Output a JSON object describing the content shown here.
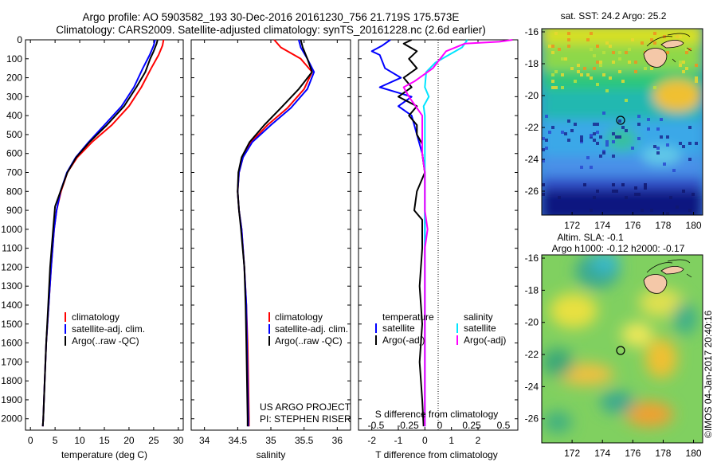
{
  "header": {
    "line1": "Argo profile: AO 5903582_193 30-Dec-2016 20161230_756 21.719S 175.573E",
    "line2": "Climatology: CARS2009. Satellite-adjusted climatology: synTS_20161228.nc (2.6d earlier)"
  },
  "colors": {
    "climatology": "#ff0000",
    "satellite": "#0000ff",
    "argo": "#000000",
    "sal_satellite": "#00e5ff",
    "sal_argo": "#ff00ff"
  },
  "chart_data": [
    {
      "id": "temperature",
      "type": "line",
      "xlabel": "temperature (deg C)",
      "ylabel": "pressure",
      "xlim": [
        -1,
        31
      ],
      "ylim": [
        2060,
        0
      ],
      "xticks": [
        0,
        5,
        10,
        15,
        20,
        25,
        30
      ],
      "yticks": [
        0,
        100,
        200,
        300,
        400,
        500,
        600,
        700,
        800,
        900,
        1000,
        1100,
        1200,
        1300,
        1400,
        1500,
        1600,
        1700,
        1800,
        1900,
        2000
      ],
      "legend": [
        "climatology",
        "satellite-adj. clim.",
        "Argo(..raw -QC)"
      ],
      "series": [
        {
          "name": "climatology",
          "color": "#ff0000",
          "points": [
            [
              27.0,
              0
            ],
            [
              26.8,
              30
            ],
            [
              26.0,
              80
            ],
            [
              24.5,
              150
            ],
            [
              22.5,
              250
            ],
            [
              20.0,
              350
            ],
            [
              16.5,
              450
            ],
            [
              12.5,
              540
            ],
            [
              9.5,
              620
            ],
            [
              7.5,
              700
            ],
            [
              6.2,
              800
            ],
            [
              5.3,
              900
            ],
            [
              4.8,
              1000
            ],
            [
              4.2,
              1200
            ],
            [
              3.7,
              1400
            ],
            [
              3.2,
              1600
            ],
            [
              2.9,
              1800
            ],
            [
              2.6,
              2000
            ],
            [
              2.5,
              2040
            ]
          ]
        },
        {
          "name": "satellite-adj. clim.",
          "color": "#0000ff",
          "points": [
            [
              25.3,
              0
            ],
            [
              25.0,
              30
            ],
            [
              24.2,
              80
            ],
            [
              22.8,
              150
            ],
            [
              21.0,
              250
            ],
            [
              18.5,
              350
            ],
            [
              15.0,
              450
            ],
            [
              11.8,
              540
            ],
            [
              9.2,
              620
            ],
            [
              7.4,
              700
            ],
            [
              6.1,
              800
            ],
            [
              5.3,
              900
            ],
            [
              4.8,
              1000
            ],
            [
              4.2,
              1200
            ],
            [
              3.7,
              1400
            ],
            [
              3.2,
              1600
            ],
            [
              2.9,
              1800
            ],
            [
              2.6,
              2000
            ],
            [
              2.5,
              2040
            ]
          ]
        },
        {
          "name": "Argo(..raw -QC)",
          "color": "#000000",
          "points": [
            [
              25.8,
              0
            ],
            [
              25.6,
              20
            ],
            [
              25.0,
              60
            ],
            [
              24.3,
              100
            ],
            [
              23.3,
              170
            ],
            [
              21.5,
              250
            ],
            [
              19.0,
              350
            ],
            [
              15.5,
              450
            ],
            [
              12.0,
              540
            ],
            [
              9.3,
              620
            ],
            [
              7.5,
              700
            ],
            [
              6.1,
              800
            ],
            [
              5.0,
              880
            ],
            [
              4.6,
              1000
            ],
            [
              4.0,
              1200
            ],
            [
              3.6,
              1400
            ],
            [
              3.2,
              1600
            ],
            [
              2.9,
              1800
            ],
            [
              2.6,
              2000
            ],
            [
              2.5,
              2040
            ]
          ]
        }
      ]
    },
    {
      "id": "salinity",
      "type": "line",
      "xlabel": "salinity",
      "xlim": [
        33.8,
        36.2
      ],
      "xticks": [
        34,
        34.5,
        35,
        35.5,
        36
      ],
      "legend": [
        "climatology",
        "satellite-adj. clim.",
        "Argo(..raw -QC)"
      ],
      "annotation": [
        "US ARGO PROJECT",
        "PI: STEPHEN RISER"
      ],
      "series": [
        {
          "name": "climatology",
          "color": "#ff0000",
          "points": [
            [
              35.05,
              0
            ],
            [
              35.15,
              40
            ],
            [
              35.45,
              100
            ],
            [
              35.62,
              170
            ],
            [
              35.5,
              260
            ],
            [
              35.25,
              360
            ],
            [
              34.95,
              450
            ],
            [
              34.7,
              540
            ],
            [
              34.58,
              620
            ],
            [
              34.52,
              700
            ],
            [
              34.5,
              800
            ],
            [
              34.52,
              900
            ],
            [
              34.56,
              1000
            ],
            [
              34.6,
              1200
            ],
            [
              34.63,
              1400
            ],
            [
              34.65,
              1600
            ],
            [
              34.66,
              1800
            ],
            [
              34.67,
              2000
            ],
            [
              34.67,
              2040
            ]
          ]
        },
        {
          "name": "satellite-adj. clim.",
          "color": "#0000ff",
          "points": [
            [
              35.42,
              0
            ],
            [
              35.45,
              40
            ],
            [
              35.55,
              100
            ],
            [
              35.65,
              170
            ],
            [
              35.55,
              260
            ],
            [
              35.3,
              360
            ],
            [
              35.0,
              450
            ],
            [
              34.72,
              540
            ],
            [
              34.58,
              620
            ],
            [
              34.52,
              700
            ],
            [
              34.5,
              800
            ],
            [
              34.52,
              900
            ],
            [
              34.56,
              1000
            ],
            [
              34.6,
              1200
            ],
            [
              34.63,
              1400
            ],
            [
              34.64,
              1600
            ],
            [
              34.65,
              1800
            ],
            [
              34.66,
              2000
            ],
            [
              34.66,
              2040
            ]
          ]
        },
        {
          "name": "Argo(..raw -QC)",
          "color": "#000000",
          "points": [
            [
              35.45,
              0
            ],
            [
              35.48,
              40
            ],
            [
              35.55,
              100
            ],
            [
              35.62,
              170
            ],
            [
              35.42,
              260
            ],
            [
              35.15,
              360
            ],
            [
              34.9,
              450
            ],
            [
              34.68,
              540
            ],
            [
              34.56,
              620
            ],
            [
              34.51,
              700
            ],
            [
              34.5,
              800
            ],
            [
              34.52,
              900
            ],
            [
              34.55,
              1000
            ],
            [
              34.6,
              1200
            ],
            [
              34.62,
              1400
            ],
            [
              34.63,
              1600
            ],
            [
              34.64,
              1800
            ],
            [
              34.65,
              2000
            ],
            [
              34.65,
              2040
            ]
          ]
        }
      ]
    },
    {
      "id": "difference",
      "type": "line",
      "xlabel": "T difference from climatology",
      "top_axis_label": "S difference from climatology",
      "xlim": [
        -2.5,
        3.5
      ],
      "xticks": [
        -2,
        -1,
        0,
        1,
        2
      ],
      "xtick_labels_bottom": [
        "-2",
        "-1",
        "0",
        "1",
        "2"
      ],
      "xtick_labels_top": [
        "-0.5",
        "-0.25",
        "0",
        "0.25",
        "0.5"
      ],
      "legend_temperature": [
        "temperature",
        "satellite",
        "Argo(-adj)"
      ],
      "legend_salinity": [
        "salinity",
        "satellite",
        "Argo(-adj)"
      ],
      "series": [
        {
          "name": "temperature satellite",
          "color": "#0000ff",
          "points": [
            [
              -1.3,
              0
            ],
            [
              -1.6,
              30
            ],
            [
              -2.0,
              60
            ],
            [
              -1.7,
              80
            ],
            [
              -1.5,
              150
            ],
            [
              -0.9,
              200
            ],
            [
              -1.7,
              250
            ],
            [
              -0.5,
              300
            ],
            [
              -1.0,
              350
            ],
            [
              -0.5,
              400
            ],
            [
              -0.3,
              500
            ],
            [
              -0.1,
              600
            ],
            [
              0.0,
              700
            ],
            [
              0.0,
              900
            ],
            [
              0.0,
              2040
            ]
          ]
        },
        {
          "name": "temperature Argo(-adj)",
          "color": "#000000",
          "points": [
            [
              -0.5,
              0
            ],
            [
              -0.8,
              20
            ],
            [
              -0.3,
              60
            ],
            [
              -0.6,
              100
            ],
            [
              -0.3,
              150
            ],
            [
              -0.8,
              200
            ],
            [
              -0.5,
              250
            ],
            [
              -1.0,
              300
            ],
            [
              -0.3,
              350
            ],
            [
              -0.6,
              400
            ],
            [
              -0.3,
              450
            ],
            [
              -0.3,
              500
            ],
            [
              -0.1,
              550
            ],
            [
              -0.1,
              600
            ],
            [
              0.0,
              700
            ],
            [
              -0.3,
              800
            ],
            [
              -0.4,
              900
            ],
            [
              -0.1,
              950
            ],
            [
              -0.1,
              1100
            ],
            [
              -0.2,
              1300
            ],
            [
              -0.1,
              1500
            ],
            [
              -0.2,
              1700
            ],
            [
              -0.1,
              1900
            ],
            [
              -0.05,
              2040
            ]
          ]
        },
        {
          "name": "salinity satellite",
          "color": "#00e5ff",
          "points": [
            [
              1.6,
              0
            ],
            [
              1.4,
              40
            ],
            [
              0.9,
              80
            ],
            [
              0.4,
              120
            ],
            [
              0.05,
              170
            ],
            [
              0.0,
              250
            ],
            [
              0.15,
              300
            ],
            [
              -0.05,
              350
            ],
            [
              0.0,
              400
            ],
            [
              0.0,
              500
            ],
            [
              0.0,
              600
            ],
            [
              0.0,
              800
            ],
            [
              0.0,
              1000
            ],
            [
              0.0,
              1500
            ],
            [
              0.0,
              2040
            ]
          ]
        },
        {
          "name": "salinity Argo(-adj)",
          "color": "#ff00ff",
          "points": [
            [
              3.3,
              0
            ],
            [
              2.8,
              10
            ],
            [
              1.5,
              20
            ],
            [
              0.8,
              60
            ],
            [
              0.3,
              150
            ],
            [
              -0.4,
              220
            ],
            [
              -0.8,
              250
            ],
            [
              -0.6,
              300
            ],
            [
              -0.1,
              400
            ],
            [
              -0.1,
              600
            ],
            [
              0.0,
              700
            ],
            [
              0.0,
              800
            ],
            [
              0.0,
              900
            ],
            [
              0.1,
              1000
            ],
            [
              0.0,
              1100
            ],
            [
              0.0,
              1300
            ],
            [
              0.0,
              1500
            ],
            [
              0.0,
              1700
            ],
            [
              0.0,
              1900
            ],
            [
              0.0,
              2040
            ]
          ]
        }
      ]
    },
    {
      "id": "sst_map",
      "type": "heatmap",
      "title": "sat. SST: 24.2  Argo: 25.2",
      "xlim": [
        170,
        180.6
      ],
      "ylim": [
        -27.5,
        -15.8
      ],
      "xticks": [
        172,
        174,
        176,
        178,
        180
      ],
      "yticks": [
        -16,
        -18,
        -20,
        -22,
        -24,
        -26
      ],
      "marker": [
        175.573,
        -21.719
      ]
    },
    {
      "id": "sla_map",
      "type": "heatmap",
      "title_line1": "Altim. SLA: -0.1",
      "title_line2": "Argo h1000: -0.12  h2000: -0.17",
      "xlim": [
        170,
        180.6
      ],
      "ylim": [
        -27.5,
        -15.8
      ],
      "xticks": [
        172,
        174,
        176,
        178,
        180
      ],
      "yticks": [
        -16,
        -18,
        -20,
        -22,
        -24,
        -26
      ],
      "marker": [
        175.573,
        -21.719
      ]
    }
  ],
  "footer": {
    "stamp": "©IMOS 04-Jan-2017 20:40:16"
  }
}
